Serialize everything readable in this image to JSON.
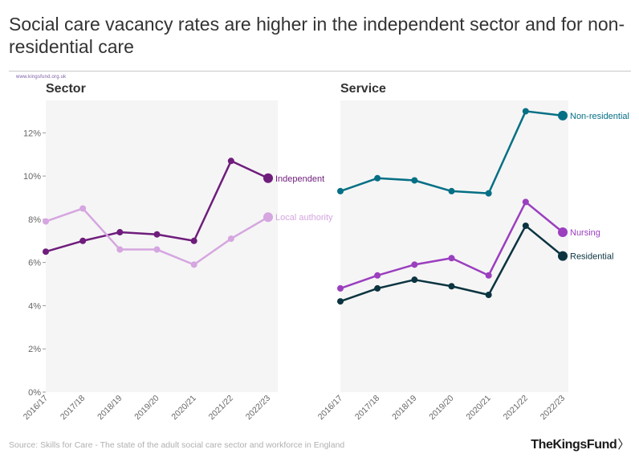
{
  "title": "Social care vacancy rates are higher in the independent sector and for non-residential care",
  "tiny_label": "www.kingsfund.org.uk",
  "source": "Source: Skills for Care - The state of the adult social care sector and workforce in England",
  "logo": {
    "text": "TheKingsFund",
    "chevron": "〉"
  },
  "colors": {
    "independent": "#6f1d7c",
    "local_authority": "#d5a6e0",
    "non_residential": "#056f85",
    "nursing": "#9b3fbf",
    "residential": "#0b3440",
    "panel_bg": "#f5f5f5",
    "axis_text": "#666666"
  },
  "chart_data": [
    {
      "type": "line",
      "title": "Sector",
      "categories": [
        "2016/17",
        "2017/18",
        "2018/19",
        "2019/20",
        "2020/21",
        "2021/22",
        "2022/23"
      ],
      "ylim": [
        0,
        13.5
      ],
      "yticks": [
        0,
        2,
        4,
        6,
        8,
        10,
        12
      ],
      "ytick_labels": [
        "0%",
        "2%",
        "4%",
        "6%",
        "8%",
        "10%",
        "12%"
      ],
      "series": [
        {
          "name": "Independent",
          "color_key": "independent",
          "values": [
            6.5,
            7.0,
            7.4,
            7.3,
            7.0,
            10.7,
            9.9
          ]
        },
        {
          "name": "Local authority",
          "color_key": "local_authority",
          "values": [
            7.9,
            8.5,
            6.6,
            6.6,
            5.9,
            7.1,
            8.1
          ]
        }
      ]
    },
    {
      "type": "line",
      "title": "Service",
      "categories": [
        "2016/17",
        "2017/18",
        "2018/19",
        "2019/20",
        "2020/21",
        "2021/22",
        "2022/23"
      ],
      "ylim": [
        0,
        13.5
      ],
      "series": [
        {
          "name": "Non-residential",
          "color_key": "non_residential",
          "values": [
            9.3,
            9.9,
            9.8,
            9.3,
            9.2,
            13.0,
            12.8
          ]
        },
        {
          "name": "Nursing",
          "color_key": "nursing",
          "values": [
            4.8,
            5.4,
            5.9,
            6.2,
            5.4,
            8.8,
            7.4
          ]
        },
        {
          "name": "Residential",
          "color_key": "residential",
          "values": [
            4.2,
            4.8,
            5.2,
            4.9,
            4.5,
            7.7,
            6.3
          ]
        }
      ]
    }
  ]
}
